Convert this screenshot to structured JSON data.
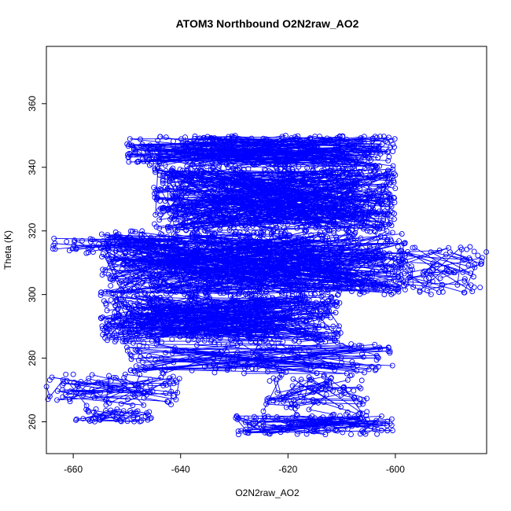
{
  "chart_data": {
    "type": "scatter",
    "title": "ATOM3 Northbound O2N2raw_AO2",
    "xlabel": "O2N2raw_AO2",
    "ylabel": "Theta (K)",
    "xlim": [
      -665,
      -583
    ],
    "ylim": [
      250,
      378
    ],
    "xticks": [
      -660,
      -640,
      -620,
      -600
    ],
    "yticks": [
      260,
      280,
      300,
      320,
      340,
      360
    ],
    "series_color": "#0000ff",
    "marker": "open-circle",
    "connected_lines": true,
    "grid": false,
    "legend": "none",
    "clusters": [
      {
        "theta": [
          340,
          350
        ],
        "x_range": [
          -650,
          -600
        ],
        "count": 380
      },
      {
        "theta": [
          320,
          340
        ],
        "x_range": [
          -645,
          -600
        ],
        "count": 750
      },
      {
        "theta": [
          300,
          320
        ],
        "x_range": [
          -655,
          -598
        ],
        "count": 800
      },
      {
        "theta": [
          285,
          300
        ],
        "x_range": [
          -655,
          -610
        ],
        "count": 600
      },
      {
        "theta": [
          313,
          318
        ],
        "x_range": [
          -665,
          -640
        ],
        "count": 60
      },
      {
        "theta": [
          300,
          315
        ],
        "x_range": [
          -600,
          -583
        ],
        "count": 90
      },
      {
        "theta": [
          275,
          285
        ],
        "x_range": [
          -650,
          -600
        ],
        "count": 160
      },
      {
        "theta": [
          265,
          275
        ],
        "x_range": [
          -665,
          -640
        ],
        "count": 90
      },
      {
        "theta": [
          260,
          264
        ],
        "x_range": [
          -660,
          -645
        ],
        "count": 50
      },
      {
        "theta": [
          256,
          262
        ],
        "x_range": [
          -630,
          -600
        ],
        "count": 130
      },
      {
        "theta": [
          262,
          275
        ],
        "x_range": [
          -625,
          -605
        ],
        "count": 90
      }
    ]
  }
}
